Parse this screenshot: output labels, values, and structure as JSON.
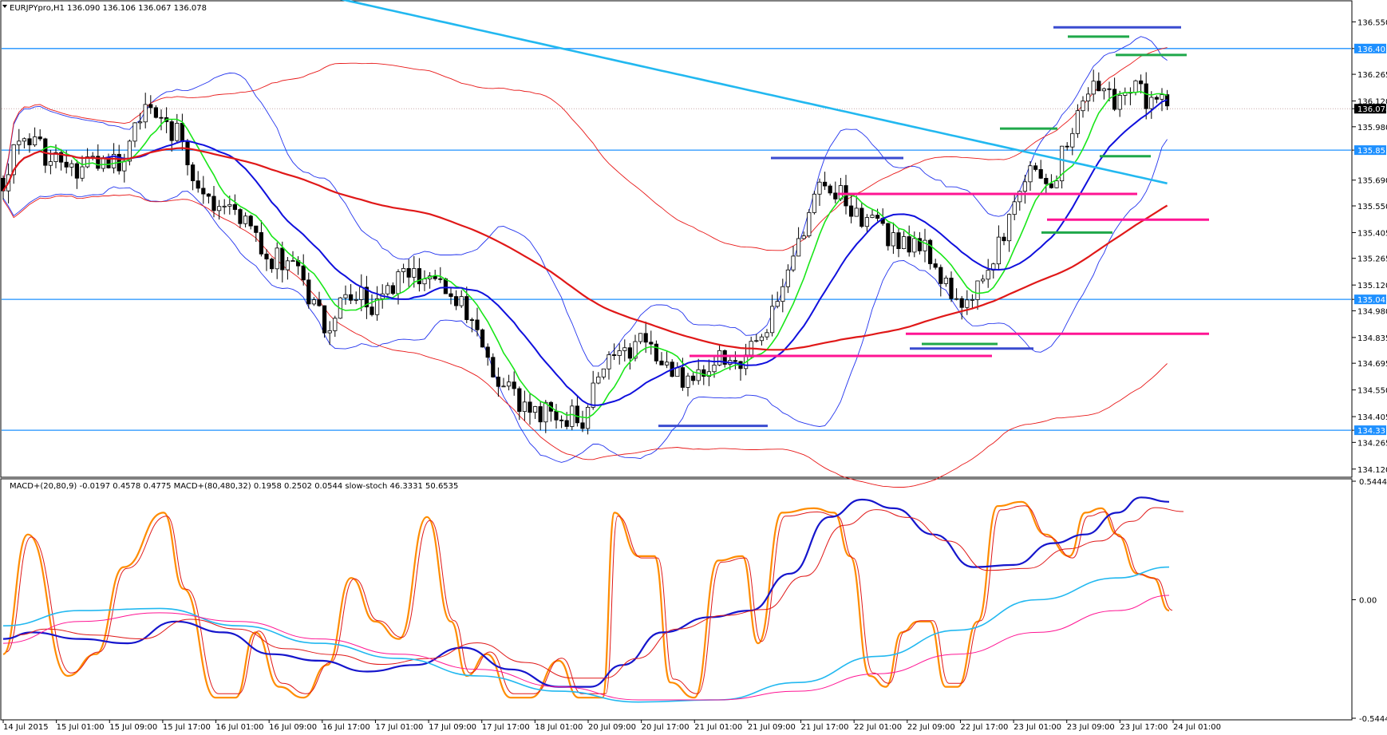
{
  "chart_data": {
    "type": "candlestick",
    "symbol_header": "EURJPYpro,H1  136.090 136.106 136.067 136.078",
    "price_axis": {
      "ticks": [
        "136.550",
        "136.405",
        "136.265",
        "136.120",
        "136.078",
        "135.980",
        "135.853",
        "135.690",
        "135.550",
        "135.405",
        "135.265",
        "135.120",
        "135.042",
        "134.980",
        "134.835",
        "134.695",
        "134.550",
        "134.405",
        "134.331",
        "134.265",
        "134.120"
      ],
      "ylim": [
        134.08,
        136.66
      ]
    },
    "time_axis": {
      "labels": [
        "14 Jul 2015",
        "15 Jul 01:00",
        "15 Jul 09:00",
        "15 Jul 17:00",
        "16 Jul 01:00",
        "16 Jul 09:00",
        "16 Jul 17:00",
        "17 Jul 01:00",
        "17 Jul 09:00",
        "17 Jul 17:00",
        "18 Jul 01:00",
        "20 Jul 09:00",
        "20 Jul 17:00",
        "21 Jul 01:00",
        "21 Jul 09:00",
        "21 Jul 17:00",
        "22 Jul 01:00",
        "22 Jul 09:00",
        "22 Jul 17:00",
        "23 Jul 01:00",
        "23 Jul 09:00",
        "23 Jul 17:00",
        "24 Jul 01:00"
      ]
    },
    "current_price": "136.078",
    "horizontal_levels": [
      {
        "price": 136.405,
        "label": "136.405",
        "color": "#1e90ff"
      },
      {
        "price": 135.853,
        "label": "135.853",
        "color": "#1e90ff"
      },
      {
        "price": 135.042,
        "label": "135.042",
        "color": "#1e90ff"
      },
      {
        "price": 134.331,
        "label": "134.331",
        "color": "#1e90ff"
      }
    ],
    "trend_segments": [
      {
        "color": "#3a4bd0",
        "x0": 1320,
        "x1": 1480,
        "price": 136.52
      },
      {
        "color": "#1fa84a",
        "x0": 1338,
        "x1": 1415,
        "price": 136.47
      },
      {
        "color": "#1fa84a",
        "x0": 1398,
        "x1": 1487,
        "price": 136.37
      },
      {
        "color": "#1fa84a",
        "x0": 1253,
        "x1": 1325,
        "price": 135.97
      },
      {
        "color": "#1fa84a",
        "x0": 1378,
        "x1": 1442,
        "price": 135.82
      },
      {
        "color": "#3a4bd0",
        "x0": 966,
        "x1": 1132,
        "price": 135.81
      },
      {
        "color": "#ff1493",
        "x0": 1050,
        "x1": 1425,
        "price": 135.615
      },
      {
        "color": "#ff1493",
        "x0": 1312,
        "x1": 1515,
        "price": 135.475
      },
      {
        "color": "#1fa84a",
        "x0": 1305,
        "x1": 1394,
        "price": 135.405
      },
      {
        "color": "#ff1493",
        "x0": 1135,
        "x1": 1515,
        "price": 134.855
      },
      {
        "color": "#1fa84a",
        "x0": 1155,
        "x1": 1250,
        "price": 134.8
      },
      {
        "color": "#3a4bd0",
        "x0": 1140,
        "x1": 1295,
        "price": 134.775
      },
      {
        "color": "#ff1493",
        "x0": 864,
        "x1": 1243,
        "price": 134.735
      },
      {
        "color": "#3a4bd0",
        "x0": 825,
        "x1": 962,
        "price": 134.355
      }
    ],
    "oscillator": {
      "header": "MACD+(20,80,9) -0.0197 0.4578 0.4775   MACD+(80,480,32) 0.1958 0.2502 0.0544   slow-stoch 46.3331 50.6535",
      "ticks": [
        "0.5444",
        "0.00",
        "-0.5444"
      ],
      "ylim": [
        -0.5444,
        0.5444
      ]
    },
    "candles_seed": 1507
  }
}
